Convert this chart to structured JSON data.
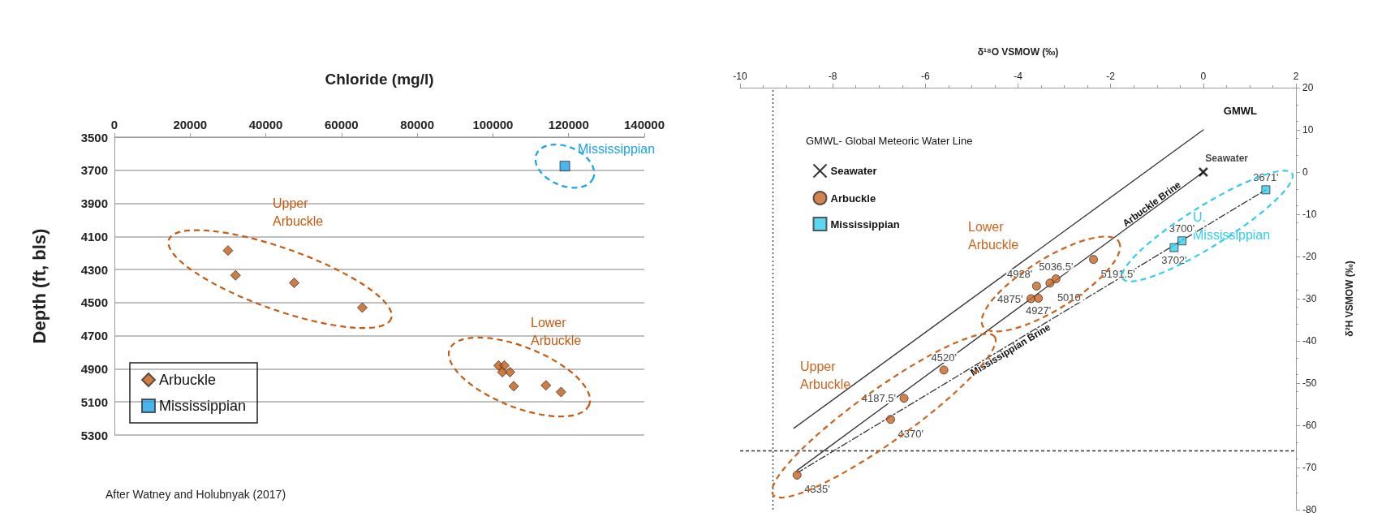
{
  "chart_data": [
    {
      "type": "scatter",
      "xlabel": "Chloride (mg/l)",
      "ylabel": "Depth (ft, bls)",
      "xlim": [
        0,
        140000
      ],
      "xticks": [
        0,
        20000,
        40000,
        60000,
        80000,
        100000,
        120000,
        140000
      ],
      "ylim": [
        5300,
        3500
      ],
      "yticks": [
        3500,
        3700,
        3900,
        4100,
        4300,
        4500,
        4700,
        4900,
        5100,
        5300
      ],
      "grid": "y",
      "legend": "bottom left",
      "annotations": [
        "Upper Arbuckle",
        "Lower Arbuckle",
        "Mississippian",
        "After Watney and Holubnyak (2017)"
      ],
      "series": [
        {
          "name": "Arbuckle",
          "marker": "diamond",
          "color": "#c55a11",
          "x": [
            30000,
            32000,
            47500,
            65500,
            101500,
            103000,
            102500,
            104500,
            105500,
            114000,
            118000
          ],
          "values": [
            4185,
            4335,
            4380,
            4530,
            4880,
            4880,
            4920,
            4920,
            5005,
            5000,
            5040
          ]
        },
        {
          "name": "Mississippian",
          "marker": "square",
          "color": "#1aa3e8",
          "x": [
            119000
          ],
          "values": [
            3675
          ]
        }
      ]
    },
    {
      "type": "scatter",
      "xlabel": "δ¹⁸O VSMOW (‰)",
      "ylabel": "δ²H VSMOW (‰)",
      "xlim": [
        -10,
        2
      ],
      "xticks": [
        -10,
        -8,
        -6,
        -4,
        -2,
        0,
        2
      ],
      "ylim": [
        -80,
        20
      ],
      "yticks": [
        -80,
        -70,
        -60,
        -50,
        -40,
        -30,
        -20,
        -10,
        0,
        10,
        20
      ],
      "legend": "top left",
      "legend_title": "GMWL- Global Meteoric Water Line",
      "annotations": [
        "Lower Arbuckle",
        "Upper Arbuckle",
        "U. Mississippian",
        {
          "text": "4335'",
          "x": -8.77,
          "y": -71.8
        },
        {
          "text": "4370'",
          "x": -6.75,
          "y": -58.6
        },
        {
          "text": "4187.5'",
          "x": -6.46,
          "y": -53.6
        },
        {
          "text": "4520'",
          "x": -5.6,
          "y": -46.9
        },
        {
          "text": "4875'",
          "x": -3.72,
          "y": -30
        },
        {
          "text": "4927'",
          "x": -3.56,
          "y": -29.9
        },
        {
          "text": "4928'",
          "x": -3.6,
          "y": -27
        },
        {
          "text": "5010'",
          "x": -3.31,
          "y": -26.3
        },
        {
          "text": "5036.5'",
          "x": -3.18,
          "y": -25.3
        },
        {
          "text": "5191.5'",
          "x": -2.37,
          "y": -20.7
        },
        {
          "text": "3671'",
          "x": 1.35,
          "y": -4.2
        },
        {
          "text": "3700'",
          "x": -0.46,
          "y": -16.3
        },
        {
          "text": "3702'",
          "x": -0.63,
          "y": -17.9
        }
      ],
      "ref_lines": [
        {
          "axis": "x",
          "value": -9.3,
          "color": "#333333",
          "line_style": "dotted"
        },
        {
          "axis": "y",
          "value": -66,
          "color": "#333333",
          "line_style": "dashed"
        }
      ],
      "series": [
        {
          "name": "GMWL",
          "type": "line",
          "marker": "none",
          "line_style": "solid",
          "color": "#333333",
          "x": [
            -8.84,
            0
          ],
          "values": [
            -60.7,
            10
          ]
        },
        {
          "name": "Arbuckle Brine",
          "type": "line",
          "marker": "none",
          "line_style": "solid",
          "color": "#333333",
          "x": [
            -8.77,
            0
          ],
          "values": [
            -70.7,
            0
          ]
        },
        {
          "name": "Mississippian Brine",
          "type": "line",
          "marker": "none",
          "line_style": "dashed",
          "color": "#333333",
          "x": [
            -8.77,
            1.35
          ],
          "values": [
            -71.3,
            -4.2
          ]
        },
        {
          "name": "Seawater",
          "marker": "cross",
          "color": "#000000",
          "x": [
            0
          ],
          "values": [
            0
          ]
        },
        {
          "name": "Arbuckle",
          "marker": "circle",
          "color": "#c8641e",
          "x": [
            -8.77,
            -6.75,
            -6.46,
            -5.6,
            -3.72,
            -3.56,
            -3.6,
            -3.31,
            -3.18,
            -2.37
          ],
          "values": [
            -71.8,
            -58.6,
            -53.6,
            -46.9,
            -30,
            -29.9,
            -27,
            -26.3,
            -25.3,
            -20.7
          ]
        },
        {
          "name": "Mississippian",
          "marker": "square",
          "color": "#33ccee",
          "x": [
            1.35,
            -0.46,
            -0.63
          ],
          "values": [
            -4.2,
            -16.3,
            -17.9
          ]
        }
      ]
    }
  ]
}
